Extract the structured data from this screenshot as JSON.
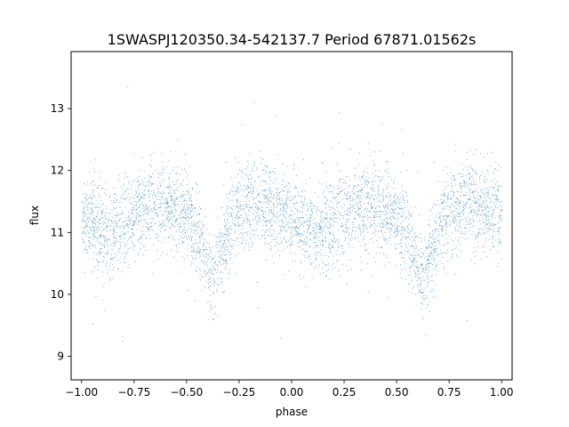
{
  "chart_data": {
    "type": "scatter",
    "title": "1SWASPJ120350.34-542137.7 Period 67871.01562s",
    "xlabel": "phase",
    "ylabel": "flux",
    "xlim": [
      -1.05,
      1.05
    ],
    "ylim": [
      8.62,
      13.92
    ],
    "x_ticks": [
      -1.0,
      -0.75,
      -0.5,
      -0.25,
      0.0,
      0.25,
      0.5,
      0.75,
      1.0
    ],
    "x_tick_labels": [
      "−1.00",
      "−0.75",
      "−0.50",
      "−0.25",
      "0.00",
      "0.25",
      "0.50",
      "0.75",
      "1.00"
    ],
    "y_ticks": [
      9,
      10,
      11,
      12,
      13
    ],
    "y_tick_labels": [
      "9",
      "10",
      "11",
      "12",
      "13"
    ],
    "grid": false,
    "marker_color": "#1f77b4",
    "series": [
      {
        "x_range": [
          -1.0,
          1.0
        ],
        "n_points_approx": 30000,
        "baseline_flux": 11.35,
        "scatter_sigma": 0.35,
        "primary_eclipses": [
          {
            "phase": -0.38,
            "min_flux": 10.25
          },
          {
            "phase": 0.62,
            "min_flux": 10.25
          }
        ],
        "secondary_eclipses": [
          {
            "phase": 0.12,
            "min_flux": 10.9
          },
          {
            "phase": -0.88,
            "min_flux": 10.9
          }
        ],
        "profile": [
          {
            "x": -1.0,
            "y": 11.3
          },
          {
            "x": -0.9,
            "y": 11.05
          },
          {
            "x": -0.88,
            "y": 10.95
          },
          {
            "x": -0.8,
            "y": 11.1
          },
          {
            "x": -0.7,
            "y": 11.45
          },
          {
            "x": -0.6,
            "y": 11.45
          },
          {
            "x": -0.5,
            "y": 11.3
          },
          {
            "x": -0.45,
            "y": 10.95
          },
          {
            "x": -0.38,
            "y": 10.25
          },
          {
            "x": -0.3,
            "y": 11.0
          },
          {
            "x": -0.25,
            "y": 11.4
          },
          {
            "x": -0.15,
            "y": 11.45
          },
          {
            "x": 0.0,
            "y": 11.25
          },
          {
            "x": 0.12,
            "y": 10.95
          },
          {
            "x": 0.2,
            "y": 11.15
          },
          {
            "x": 0.3,
            "y": 11.45
          },
          {
            "x": 0.4,
            "y": 11.45
          },
          {
            "x": 0.5,
            "y": 11.3
          },
          {
            "x": 0.55,
            "y": 10.95
          },
          {
            "x": 0.62,
            "y": 10.25
          },
          {
            "x": 0.7,
            "y": 11.0
          },
          {
            "x": 0.75,
            "y": 11.4
          },
          {
            "x": 0.85,
            "y": 11.45
          },
          {
            "x": 1.0,
            "y": 11.3
          }
        ]
      }
    ]
  }
}
